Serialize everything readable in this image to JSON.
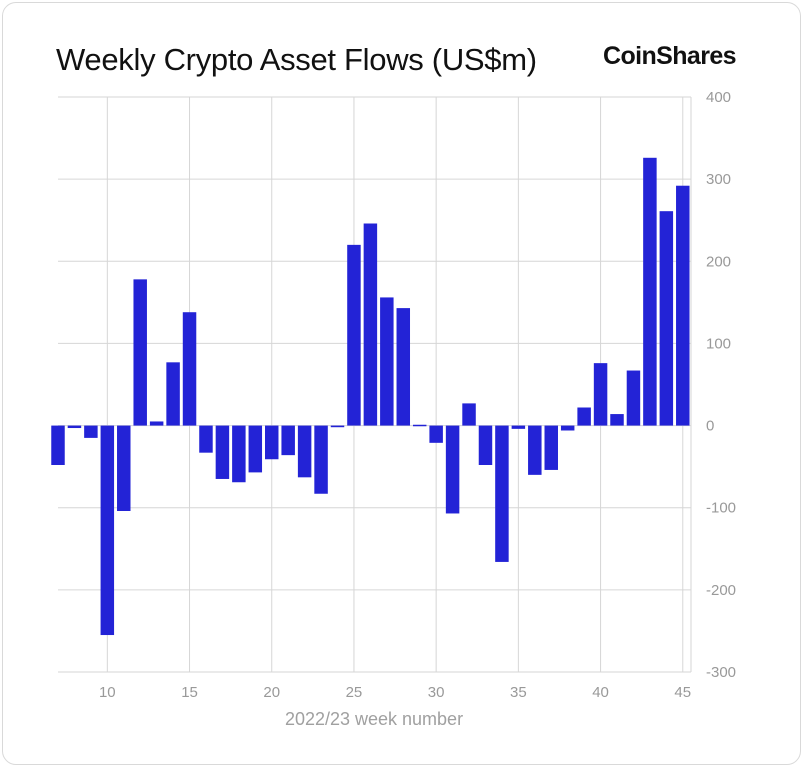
{
  "header": {
    "title": "Weekly Crypto Asset Flows (US$m)",
    "brand": "CoinShares"
  },
  "colors": {
    "bar": "#2323d6",
    "grid": "#d6d6d6",
    "text": "#999999"
  },
  "chart_data": {
    "type": "bar",
    "title": "Weekly Crypto Asset Flows (US$m)",
    "xlabel": "2022/23 week number",
    "ylabel": "",
    "ylim": [
      -300,
      400
    ],
    "xlim": [
      7,
      45.5
    ],
    "y_ticks": [
      400,
      300,
      200,
      100,
      0,
      -100,
      -200,
      -300
    ],
    "y_tick_labels": [
      "400",
      "300",
      "200",
      "100",
      "0",
      "-100",
      "-200",
      "-300"
    ],
    "x_ticks": [
      10,
      15,
      20,
      25,
      30,
      35,
      40,
      45
    ],
    "x_tick_labels": [
      "10",
      "15",
      "20",
      "25",
      "30",
      "35",
      "40",
      "45"
    ],
    "grid": true,
    "y_axis_position": "right",
    "x": [
      7,
      8,
      9,
      10,
      11,
      12,
      13,
      14,
      15,
      16,
      17,
      18,
      19,
      20,
      21,
      22,
      23,
      24,
      25,
      26,
      27,
      28,
      29,
      30,
      31,
      32,
      33,
      34,
      35,
      36,
      37,
      38,
      39,
      40,
      41,
      42,
      43,
      44,
      45
    ],
    "values": [
      -48,
      -3,
      -15,
      -255,
      -104,
      178,
      5,
      77,
      138,
      -33,
      -65,
      -69,
      -57,
      -41,
      -36,
      -63,
      -83,
      -2,
      220,
      246,
      156,
      143,
      1,
      -21,
      -107,
      27,
      -48,
      -166,
      -4,
      -60,
      -54,
      -6,
      22,
      76,
      14,
      67,
      326,
      261,
      292
    ]
  }
}
